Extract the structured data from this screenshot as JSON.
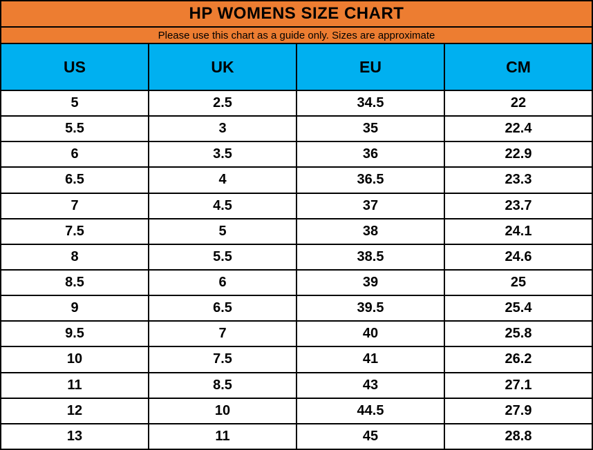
{
  "title": "HP WOMENS SIZE CHART",
  "subtitle": "Please use this chart as a guide only. Sizes are approximate",
  "colors": {
    "title_bg": "#ED7D31",
    "subtitle_bg": "#ED7D31",
    "column_header_bg": "#00B0F0",
    "row_bg": "#FFFFFF",
    "border": "#000000",
    "text": "#000000"
  },
  "chart_data": {
    "type": "table",
    "title": "HP WOMENS SIZE CHART",
    "subtitle": "Please use this chart as a guide only. Sizes are approximate",
    "columns": [
      "US",
      "UK",
      "EU",
      "CM"
    ],
    "rows": [
      [
        "5",
        "2.5",
        "34.5",
        "22"
      ],
      [
        "5.5",
        "3",
        "35",
        "22.4"
      ],
      [
        "6",
        "3.5",
        "36",
        "22.9"
      ],
      [
        "6.5",
        "4",
        "36.5",
        "23.3"
      ],
      [
        "7",
        "4.5",
        "37",
        "23.7"
      ],
      [
        "7.5",
        "5",
        "38",
        "24.1"
      ],
      [
        "8",
        "5.5",
        "38.5",
        "24.6"
      ],
      [
        "8.5",
        "6",
        "39",
        "25"
      ],
      [
        "9",
        "6.5",
        "39.5",
        "25.4"
      ],
      [
        "9.5",
        "7",
        "40",
        "25.8"
      ],
      [
        "10",
        "7.5",
        "41",
        "26.2"
      ],
      [
        "11",
        "8.5",
        "43",
        "27.1"
      ],
      [
        "12",
        "10",
        "44.5",
        "27.9"
      ],
      [
        "13",
        "11",
        "45",
        "28.8"
      ]
    ]
  }
}
